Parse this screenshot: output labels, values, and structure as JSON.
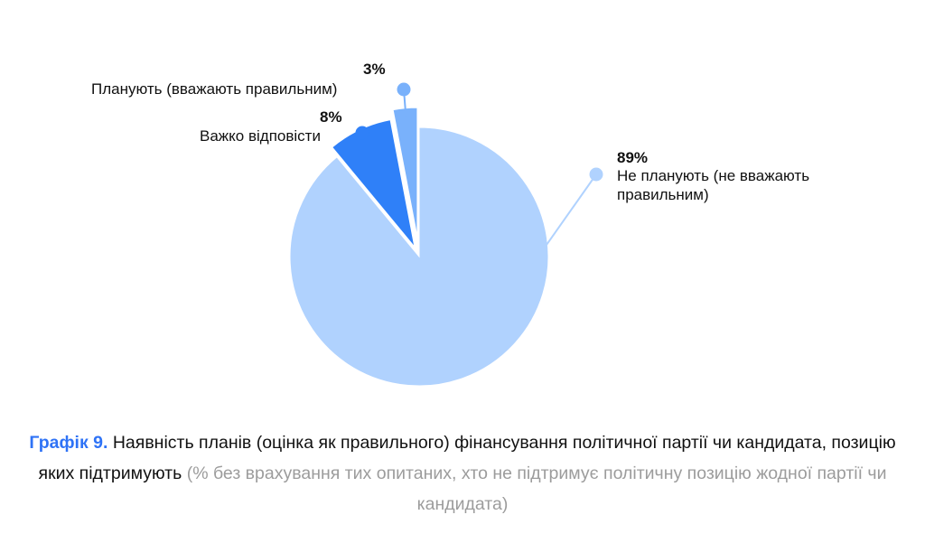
{
  "chart_data": {
    "type": "pie",
    "slices": [
      {
        "key": "no_plans",
        "label": "Не планують (не вважають правильним)",
        "label_lines": [
          "Не планують (не вважають",
          "правильним)"
        ],
        "value": 89,
        "value_label": "89%",
        "color": "#b0d2fe"
      },
      {
        "key": "hard",
        "label": "Важко відповісти",
        "label_lines": [
          "Важко відповісти"
        ],
        "value": 8,
        "value_label": "8%",
        "color": "#2f80f8"
      },
      {
        "key": "plan",
        "label": "Планують (вважають правильним)",
        "label_lines": [
          "Планують (вважають правильним)"
        ],
        "value": 3,
        "value_label": "3%",
        "color": "#79b1fb"
      }
    ]
  },
  "caption": {
    "figure_label": "Графік 9.",
    "title": "Наявність планів (оцінка як правильного) фінансування політичної партії чи кандидата, позицію яких підтримують",
    "note": "(% без врахування тих опитаних, хто не підтримує політичну позицію жодної партії чи кандидата)"
  }
}
